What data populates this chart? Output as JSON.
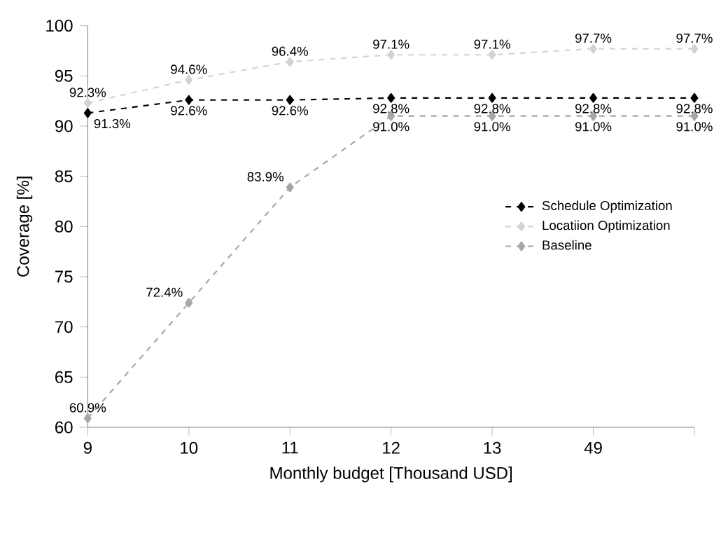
{
  "chart_data": {
    "type": "line",
    "xlabel": "Monthly budget [Thousand USD]",
    "ylabel": "Coverage [%]",
    "categories": [
      "9",
      "10",
      "11",
      "12",
      "13",
      "49",
      null
    ],
    "ylim": [
      60,
      100
    ],
    "yticks": [
      60,
      65,
      70,
      75,
      80,
      85,
      90,
      95,
      100
    ],
    "marker": "diamond",
    "line_style": "dashed",
    "legend": "right",
    "series": [
      {
        "name": "Schedule Optimization",
        "color": "#000000",
        "values": [
          91.3,
          92.6,
          92.6,
          92.8,
          92.8,
          92.8,
          92.8
        ],
        "value_labels": [
          "91.3%",
          "92.6%",
          "92.6%",
          "92.8%",
          "92.8%",
          "92.8%",
          "92.8%"
        ]
      },
      {
        "name": "Locatiion Optimization",
        "color": "#d3d3d3",
        "values": [
          92.3,
          94.6,
          96.4,
          97.1,
          97.1,
          97.7,
          97.7
        ],
        "value_labels": [
          "92.3%",
          "94.6%",
          "96.4%",
          "97.1%",
          "97.1%",
          "97.7%",
          "97.7%"
        ]
      },
      {
        "name": "Baseline",
        "color": "#a6a6a6",
        "values": [
          60.9,
          72.4,
          83.9,
          91.0,
          91.0,
          91.0,
          91.0
        ],
        "value_labels": [
          "60.9%",
          "72.4%",
          "83.9%",
          "91.0%",
          "91.0%",
          "91.0%",
          "91.0%"
        ]
      }
    ]
  }
}
